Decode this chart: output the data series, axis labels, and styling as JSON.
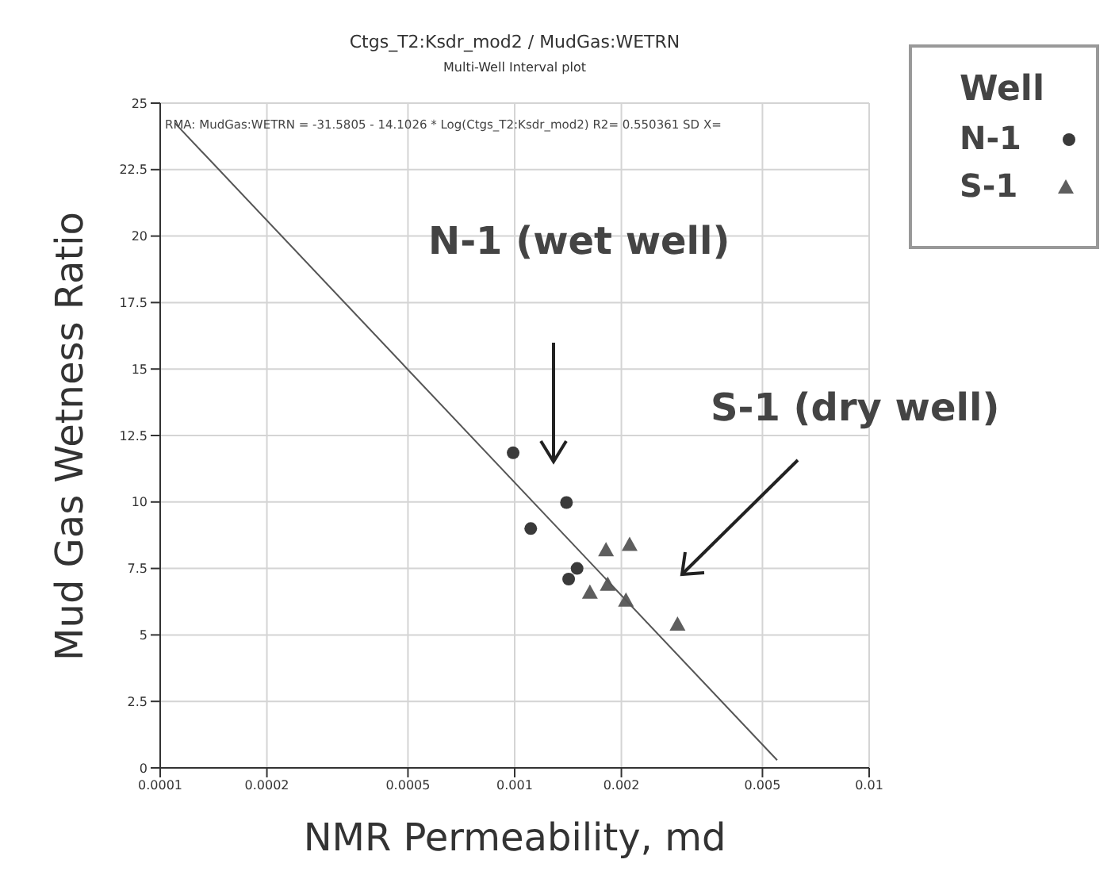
{
  "chart_data": {
    "type": "scatter",
    "title": "Ctgs_T2:Ksdr_mod2 / MudGas:WETRN",
    "subtitle": "Multi-Well Interval plot",
    "xlabel": "NMR Permeability, md",
    "ylabel": "Mud Gas Wetness Ratio",
    "legend_title": "Well",
    "annotations": [
      "RMA: MudGas:WETRN = -31.5805  -  14.1026 * Log(Ctgs_T2:Ksdr_mod2)   R2= 0.550361 SD X=",
      "N-1 (wet well)",
      "S-1 (dry well)"
    ],
    "series": [
      {
        "name": "N-1",
        "color": "#3a3a3a",
        "marker": "circle",
        "x": [
          0.00099,
          0.00111,
          0.0014,
          0.00142,
          0.0015
        ],
        "values": [
          11.85,
          9.0,
          9.98,
          7.1,
          7.5
        ]
      },
      {
        "name": "S-1",
        "color": "#5e5e5e",
        "marker": "triangle",
        "x": [
          0.00181,
          0.00211,
          0.00163,
          0.00183,
          0.00206,
          0.00288
        ],
        "values": [
          8.2,
          8.4,
          6.6,
          6.9,
          6.3,
          5.4
        ]
      },
      {
        "type": "line",
        "color": "#555555",
        "marker": "none",
        "x": [
          0.00011,
          0.0055
        ],
        "values": [
          24.25,
          0.29
        ]
      }
    ],
    "log": "x",
    "xlim": [
      0.0001,
      0.01
    ],
    "xticks": [
      0.0001,
      0.0002,
      0.0005,
      0.001,
      0.002,
      0.005,
      0.01
    ],
    "ylim": [
      0,
      25
    ],
    "yticks": [
      0,
      2.5,
      5,
      7.5,
      10,
      12.5,
      15,
      17.5,
      20,
      22.5,
      25
    ],
    "grid": true,
    "legend": "right"
  }
}
